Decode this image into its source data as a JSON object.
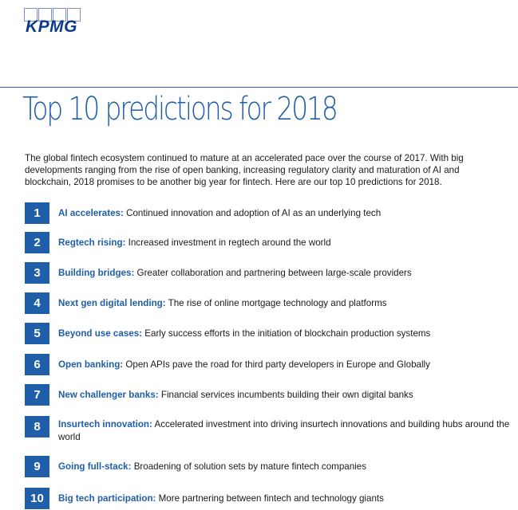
{
  "header": {
    "logo_text": "KPMG",
    "title": "Top 10 predictions for 2018"
  },
  "intro": "The global fintech ecosystem continued to mature at an accelerated pace over the course of 2017. With big developments ranging from the rise of open banking, increasing regulatory clarity and maturation of AI and blockchain, 2018 promises to be another big year for fintech. Here are our top 10 predictions for 2018.",
  "predictions": [
    {
      "number": "1",
      "label": "AI accelerates:",
      "text": " Continued innovation and adoption of AI as an underlying tech"
    },
    {
      "number": "2",
      "label": "Regtech rising:",
      "text": " Increased investment in regtech around the world"
    },
    {
      "number": "3",
      "label": "Building bridges:",
      "text": " Greater collaboration and partnering between large-scale providers"
    },
    {
      "number": "4",
      "label": "Next gen digital lending:",
      "text": " The rise of online mortgage technology and platforms"
    },
    {
      "number": "5",
      "label": "Beyond use cases:",
      "text": " Early success efforts in the initiation of blockchain production systems"
    },
    {
      "number": "6",
      "label": "Open banking:",
      "text": " Open APIs pave the road for third party developers in Europe and Globally"
    },
    {
      "number": "7",
      "label": "New challenger banks:",
      "text": " Financial services incumbents building their own digital banks"
    },
    {
      "number": "8",
      "label": "Insurtech innovation:",
      "text": " Accelerated investment into driving insurtech innovations and building hubs around the world"
    },
    {
      "number": "9",
      "label": "Going full-stack:",
      "text": " Broadening of solution sets by mature fintech companies"
    },
    {
      "number": "10",
      "label": "Big tech participation:",
      "text": " More partnering between fintech and technology giants"
    }
  ]
}
